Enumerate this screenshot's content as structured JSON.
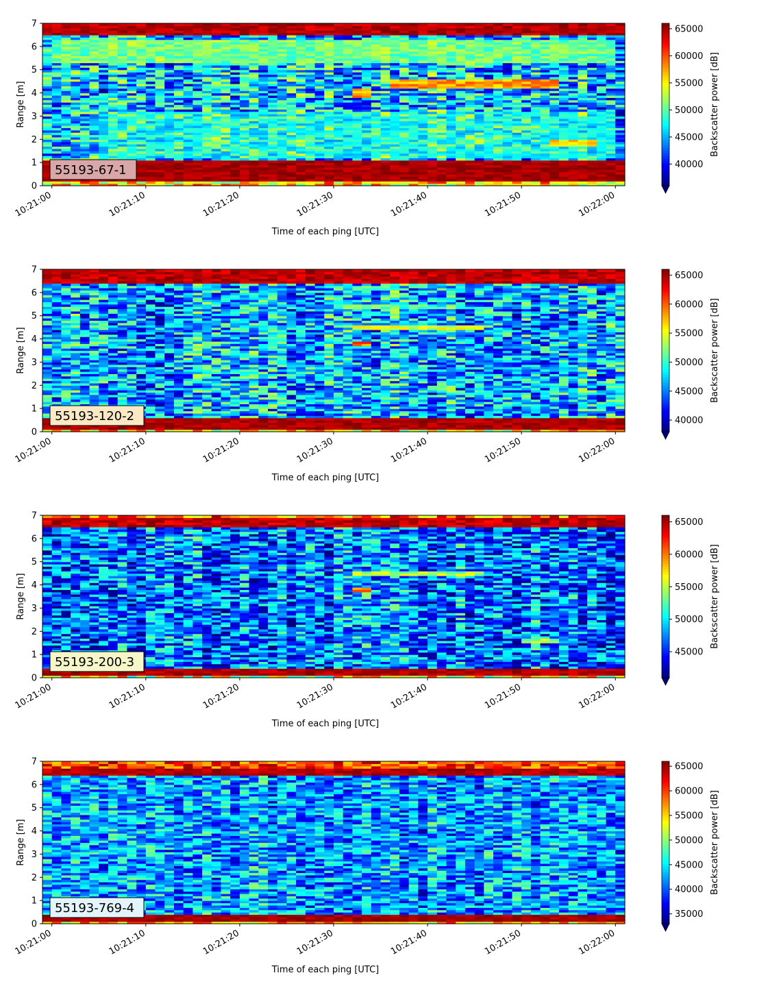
{
  "colors": {
    "colormap": "jet",
    "jet_stops": [
      "#00007f",
      "#0000ff",
      "#007fff",
      "#00ffff",
      "#7fff7f",
      "#ffff00",
      "#ff7f00",
      "#ff0000",
      "#7f0000"
    ]
  },
  "chart_data": [
    {
      "type": "heatmap",
      "label": "55193-67-1",
      "label_box_color": "#d9a7a7",
      "xlabel": "Time of each ping [UTC]",
      "ylabel": "Range [m]",
      "x_ticks": [
        "10:21:00",
        "10:21:10",
        "10:21:20",
        "10:21:30",
        "10:21:40",
        "10:21:50",
        "10:22:00"
      ],
      "x_range_seconds": [
        -1,
        61
      ],
      "ylim": [
        0,
        7
      ],
      "y_ticks": [
        "0",
        "1",
        "2",
        "3",
        "4",
        "5",
        "6",
        "7"
      ],
      "colorbar": {
        "label": "Backscatter power [dB]",
        "range": [
          36000,
          66000
        ],
        "ticks": [
          "40000",
          "45000",
          "50000",
          "55000",
          "60000",
          "65000"
        ],
        "extend": "min"
      },
      "surface_band_m": [
        6.5,
        7.0
      ],
      "surface_level": 66000,
      "bottom_band_m": [
        0.2,
        1.1
      ],
      "bottom_level": 66000,
      "noise_mean": 45500,
      "noise_spread": 9000,
      "features": [
        {
          "t": [
            0,
            60
          ],
          "range_m": [
            5.3,
            6.3
          ],
          "level": 53000
        },
        {
          "t": [
            5,
            60
          ],
          "range_m": [
            1.2,
            3.2
          ],
          "level": 49000
        },
        {
          "t": [
            36,
            54
          ],
          "range_m": [
            4.2,
            4.6
          ],
          "level": 60000
        },
        {
          "t": [
            32,
            34
          ],
          "range_m": [
            3.8,
            4.2
          ],
          "level": 60000
        },
        {
          "t": [
            53,
            58
          ],
          "range_m": [
            1.7,
            2.0
          ],
          "level": 58000
        }
      ]
    },
    {
      "type": "heatmap",
      "label": "55193-120-2",
      "label_box_color": "#fbe9c5",
      "xlabel": "Time of each ping [UTC]",
      "ylabel": "Range [m]",
      "x_ticks": [
        "10:21:00",
        "10:21:10",
        "10:21:20",
        "10:21:30",
        "10:21:40",
        "10:21:50",
        "10:22:00"
      ],
      "x_range_seconds": [
        -1,
        61
      ],
      "ylim": [
        0,
        7
      ],
      "y_ticks": [
        "0",
        "1",
        "2",
        "3",
        "4",
        "5",
        "6",
        "7"
      ],
      "colorbar": {
        "label": "Backscatter power [dB]",
        "range": [
          38000,
          66000
        ],
        "ticks": [
          "40000",
          "45000",
          "50000",
          "55000",
          "60000",
          "65000"
        ],
        "extend": "min"
      },
      "surface_band_m": [
        6.4,
        7.0
      ],
      "surface_level": 66000,
      "bottom_band_m": [
        0.1,
        0.6
      ],
      "bottom_level": 66000,
      "noise_mean": 46500,
      "noise_spread": 8000,
      "features": [
        {
          "t": [
            32,
            46
          ],
          "range_m": [
            4.4,
            4.6
          ],
          "level": 57000
        },
        {
          "t": [
            32,
            34
          ],
          "range_m": [
            3.7,
            3.9
          ],
          "level": 62000
        },
        {
          "t": [
            30,
            40
          ],
          "range_m": [
            5.3,
            5.5
          ],
          "level": 53000
        }
      ]
    },
    {
      "type": "heatmap",
      "label": "55193-200-3",
      "label_box_color": "#f5f7c8",
      "xlabel": "Time of each ping [UTC]",
      "ylabel": "Range [m]",
      "x_ticks": [
        "10:21:00",
        "10:21:10",
        "10:21:20",
        "10:21:30",
        "10:21:40",
        "10:21:50",
        "10:22:00"
      ],
      "x_range_seconds": [
        -1,
        61
      ],
      "ylim": [
        0,
        7
      ],
      "y_ticks": [
        "0",
        "1",
        "2",
        "3",
        "4",
        "5",
        "6",
        "7"
      ],
      "colorbar": {
        "label": "Backscatter power [dB]",
        "range": [
          41000,
          66000
        ],
        "ticks": [
          "45000",
          "50000",
          "55000",
          "60000",
          "65000"
        ],
        "extend": "min"
      },
      "surface_band_m": [
        6.5,
        6.9
      ],
      "surface_level": 66000,
      "bottom_band_m": [
        0.1,
        0.4
      ],
      "bottom_level": 66000,
      "noise_mean": 47000,
      "noise_spread": 7000,
      "features": [
        {
          "t": [
            32,
            46
          ],
          "range_m": [
            4.4,
            4.6
          ],
          "level": 57000
        },
        {
          "t": [
            32,
            34
          ],
          "range_m": [
            3.7,
            3.9
          ],
          "level": 62000
        },
        {
          "t": [
            50,
            54
          ],
          "range_m": [
            1.5,
            1.7
          ],
          "level": 57000
        }
      ]
    },
    {
      "type": "heatmap",
      "label": "55193-769-4",
      "label_box_color": "#e3f4fb",
      "xlabel": "Time of each ping [UTC]",
      "ylabel": "Range [m]",
      "x_ticks": [
        "10:21:00",
        "10:21:10",
        "10:21:20",
        "10:21:30",
        "10:21:40",
        "10:21:50",
        "10:22:00"
      ],
      "x_range_seconds": [
        -1,
        61
      ],
      "ylim": [
        0,
        7
      ],
      "y_ticks": [
        "0",
        "1",
        "2",
        "3",
        "4",
        "5",
        "6",
        "7"
      ],
      "colorbar": {
        "label": "Backscatter power [dB]",
        "range": [
          33000,
          66000
        ],
        "ticks": [
          "35000",
          "40000",
          "45000",
          "50000",
          "55000",
          "60000",
          "65000"
        ],
        "extend": "min"
      },
      "surface_band_m": [
        6.4,
        6.7
      ],
      "surface_level": 66000,
      "bottom_band_m": [
        0.1,
        0.35
      ],
      "bottom_level": 66000,
      "noise_mean": 42000,
      "noise_spread": 8000,
      "features": []
    }
  ]
}
